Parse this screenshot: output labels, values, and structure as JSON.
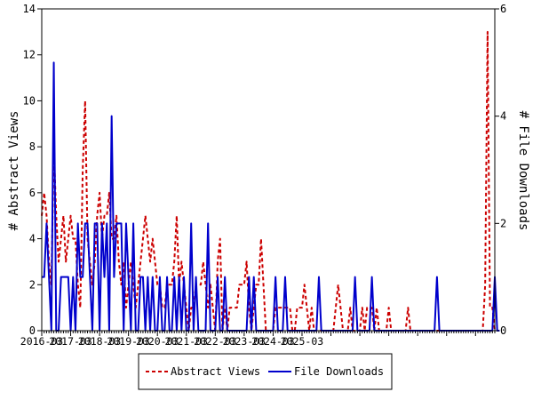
{
  "chart_data": {
    "type": "line",
    "xlabel": "",
    "ylabel_left": "# Abstract Views",
    "ylabel_right": "# File Downloads",
    "ylim_left": [
      0,
      14
    ],
    "ylim_right": [
      0,
      6
    ],
    "y_ticks_left": [
      "0",
      "2",
      "4",
      "6",
      "8",
      "10",
      "12",
      "14"
    ],
    "y_ticks_right": [
      "0",
      "2",
      "4",
      "6"
    ],
    "x_tick_labels": [
      "2016-03",
      "2017-03",
      "2018-03",
      "2019-03",
      "2020-03",
      "2021-03",
      "2022-03",
      "2023-03",
      "2024-03",
      "2025-03"
    ],
    "legend_position": "bottom",
    "grid": false,
    "series": [
      {
        "name": "Abstract Views",
        "axis": "left",
        "color": "#cc0000",
        "style": "dashed",
        "values": [
          5,
          6,
          5,
          3,
          2,
          8,
          5,
          3,
          4,
          5,
          3,
          4,
          5,
          4,
          4,
          2,
          1,
          7,
          10,
          4,
          3,
          2,
          3,
          5,
          6,
          4,
          5,
          5,
          6,
          4,
          4,
          5,
          3,
          2,
          3,
          1,
          2,
          3,
          2,
          1,
          2,
          3,
          4,
          5,
          4,
          3,
          4,
          3,
          2,
          2,
          1,
          1,
          2,
          2,
          2,
          3,
          5,
          2,
          3,
          2,
          1,
          0,
          1,
          1,
          2,
          2,
          2,
          3,
          2,
          1,
          2,
          1,
          0,
          3,
          4,
          0,
          1,
          0,
          1,
          1,
          1,
          1,
          2,
          2,
          2,
          3,
          1,
          0,
          1,
          2,
          2,
          4,
          2,
          0,
          0,
          0,
          0,
          1,
          1,
          1,
          1,
          1,
          1,
          1,
          0,
          0,
          1,
          1,
          1,
          2,
          1,
          0,
          1,
          0,
          0,
          0,
          0,
          0,
          0,
          0,
          0,
          0,
          1,
          2,
          1,
          0,
          0,
          0,
          1,
          0,
          0,
          0,
          0,
          1,
          0,
          1,
          1,
          1,
          0,
          1,
          0,
          0,
          0,
          0,
          1,
          0,
          0,
          0,
          0,
          0,
          0,
          0,
          1,
          0,
          0,
          0,
          0,
          0,
          0,
          0,
          0,
          0,
          0,
          0,
          0,
          0,
          0,
          0,
          0,
          0,
          0,
          0,
          0,
          0,
          0,
          0,
          0,
          0,
          0,
          0,
          0,
          0,
          0,
          0,
          2,
          13,
          1,
          1,
          0
        ]
      },
      {
        "name": "File Downloads",
        "axis": "right",
        "color": "#0000cc",
        "style": "solid",
        "values": [
          1,
          1,
          2,
          1,
          0,
          5,
          0,
          0,
          1,
          1,
          1,
          1,
          0,
          1,
          0,
          2,
          1,
          1,
          2,
          2,
          1,
          0,
          2,
          2,
          0,
          2,
          1,
          2,
          0,
          4,
          1,
          2,
          2,
          2,
          0,
          2,
          1,
          0,
          2,
          0,
          0,
          1,
          1,
          0,
          1,
          0,
          1,
          0,
          0,
          1,
          0,
          0,
          1,
          0,
          0,
          1,
          0,
          1,
          0,
          1,
          0,
          0,
          2,
          0,
          1,
          0,
          0,
          0,
          0,
          2,
          0,
          0,
          0,
          1,
          0,
          0,
          1,
          0,
          0,
          0,
          0,
          0,
          0,
          0,
          0,
          0,
          1,
          0,
          1,
          0,
          0,
          0,
          0,
          0,
          0,
          0,
          0,
          1,
          0,
          0,
          0,
          1,
          0,
          0,
          0,
          0,
          0,
          0,
          0,
          0,
          0,
          0,
          0,
          0,
          0,
          1,
          0,
          0,
          0,
          0,
          0,
          0,
          0,
          0,
          0,
          0,
          0,
          0,
          0,
          0,
          1,
          0,
          0,
          0,
          0,
          0,
          0,
          1,
          0,
          0,
          0,
          0,
          0,
          0,
          0,
          0,
          0,
          0,
          0,
          0,
          0,
          0,
          0,
          0,
          0,
          0,
          0,
          0,
          0,
          0,
          0,
          0,
          0,
          0,
          1,
          0,
          0,
          0,
          0,
          0,
          0,
          0,
          0,
          0,
          0,
          0,
          0,
          0,
          0,
          0,
          0,
          0,
          0,
          0,
          0,
          0,
          0,
          0,
          1,
          0,
          0
        ]
      }
    ]
  }
}
